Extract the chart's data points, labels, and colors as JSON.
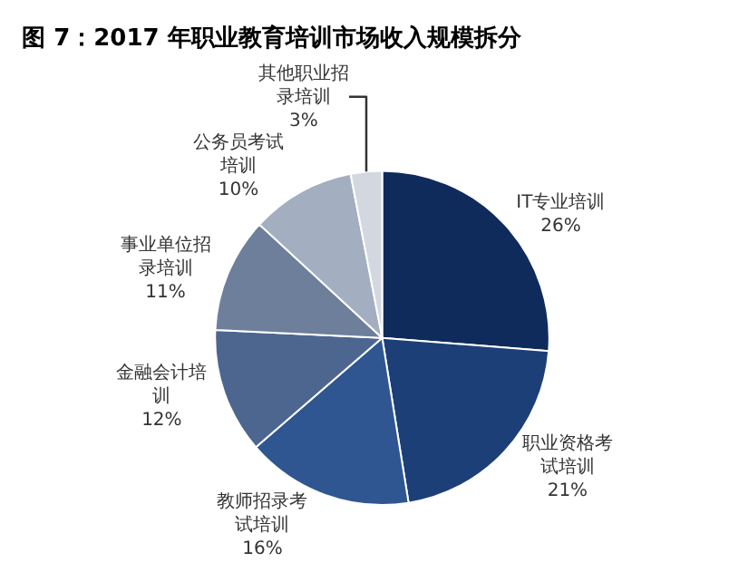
{
  "chart_data": {
    "type": "pie",
    "title": "图 7：2017 年职业教育培训市场收入规模拆分",
    "categories": [
      "IT专业培训",
      "职业资格考试培训",
      "教师招录考试培训",
      "金融会计培训",
      "事业单位招录培训",
      "公务员考试培训",
      "其他职业招录培训"
    ],
    "values": [
      26,
      21,
      16,
      12,
      11,
      10,
      3
    ],
    "value_labels": [
      "26%",
      "21%",
      "16%",
      "12%",
      "11%",
      "10%",
      "3%"
    ],
    "colors": [
      "#0f2b5b",
      "#1d3f78",
      "#2f5690",
      "#4d6690",
      "#6e7f9c",
      "#a3afc0",
      "#d3d8e0"
    ],
    "legend": false
  }
}
